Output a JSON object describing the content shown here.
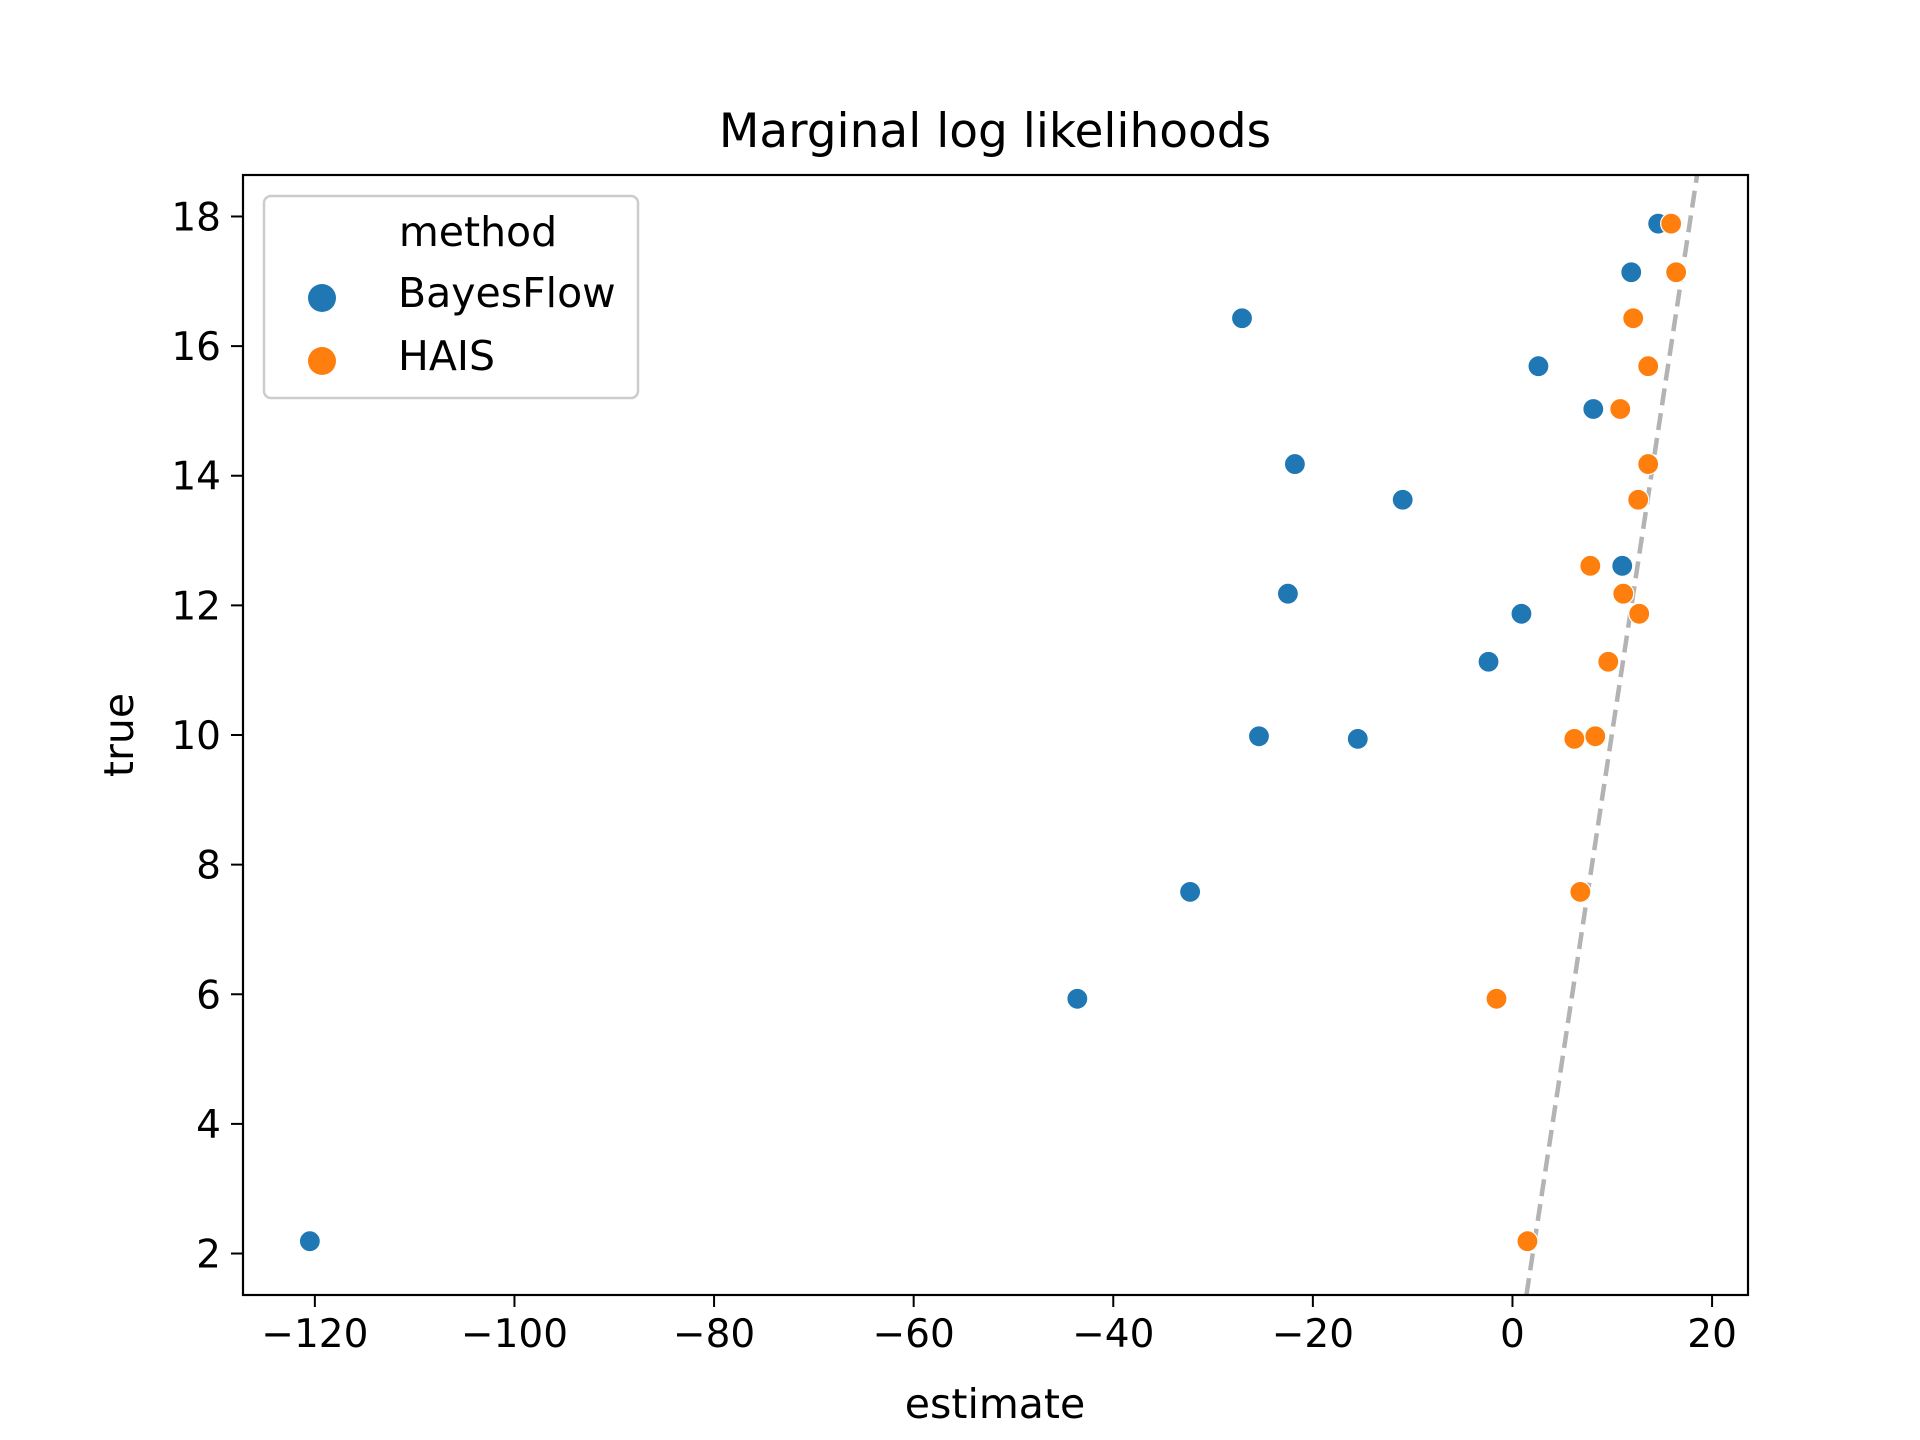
{
  "chart_data": {
    "type": "scatter",
    "title": "Marginal log likelihoods",
    "xlabel": "estimate",
    "ylabel": "true",
    "xlim": [
      -127.2,
      23.6
    ],
    "ylim": [
      1.36,
      18.64
    ],
    "xticks": [
      -120,
      -100,
      -80,
      -60,
      -40,
      -20,
      0,
      20
    ],
    "yticks": [
      2,
      4,
      6,
      8,
      10,
      12,
      14,
      16,
      18
    ],
    "grid": false,
    "legend": {
      "title": "method",
      "position": "top-left"
    },
    "series": [
      {
        "name": "BayesFlow",
        "color": "#1f77b4",
        "points": [
          [
            -120.5,
            2.19
          ],
          [
            -43.6,
            5.93
          ],
          [
            -32.3,
            7.58
          ],
          [
            -25.4,
            9.98
          ],
          [
            -15.5,
            9.94
          ],
          [
            -22.5,
            12.18
          ],
          [
            -21.8,
            14.18
          ],
          [
            -11.0,
            13.63
          ],
          [
            -27.1,
            16.43
          ],
          [
            -2.4,
            11.13
          ],
          [
            0.9,
            11.87
          ],
          [
            2.6,
            15.69
          ],
          [
            8.1,
            15.03
          ],
          [
            11.0,
            12.61
          ],
          [
            11.9,
            17.14
          ],
          [
            14.6,
            17.89
          ]
        ]
      },
      {
        "name": "HAIS",
        "color": "#ff7f0e",
        "points": [
          [
            1.5,
            2.19
          ],
          [
            -1.6,
            5.93
          ],
          [
            6.8,
            7.58
          ],
          [
            6.2,
            9.94
          ],
          [
            8.3,
            9.98
          ],
          [
            9.6,
            11.13
          ],
          [
            11.1,
            12.18
          ],
          [
            12.7,
            11.87
          ],
          [
            7.8,
            12.61
          ],
          [
            12.6,
            13.63
          ],
          [
            13.6,
            14.18
          ],
          [
            10.8,
            15.03
          ],
          [
            13.6,
            15.69
          ],
          [
            12.1,
            16.43
          ],
          [
            16.4,
            17.14
          ],
          [
            15.9,
            17.89
          ]
        ]
      }
    ],
    "reference_line": {
      "style": "dashed",
      "color": "#b3b3b3",
      "points": [
        [
          1.4,
          1.36
        ],
        [
          18.5,
          18.64
        ]
      ]
    }
  }
}
